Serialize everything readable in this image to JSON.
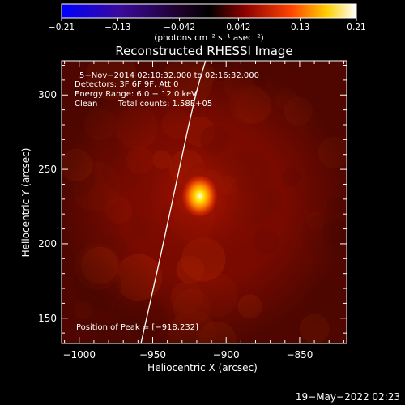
{
  "chart_data": {
    "type": "heatmap",
    "title": "Reconstructed RHESSI Image",
    "xlabel": "Heliocentric X (arcsec)",
    "ylabel": "Heliocentric Y (arcsec)",
    "xlim": [
      -1012,
      -818
    ],
    "ylim": [
      133,
      323
    ],
    "x_ticks": [
      -1000,
      -950,
      -900,
      -850
    ],
    "y_ticks": [
      150,
      200,
      250,
      300
    ],
    "x_tick_labels": [
      "−1000",
      "−950",
      "−900",
      "−850"
    ],
    "y_tick_labels": [
      "150",
      "200",
      "250",
      "300"
    ],
    "colorbar": {
      "range": [
        -0.21,
        0.21
      ],
      "ticks": [
        -0.21,
        -0.13,
        -0.042,
        0.042,
        0.13,
        0.21
      ],
      "tick_labels": [
        "−0.21",
        "−0.13",
        "−0.042",
        "0.042",
        "0.13",
        "0.21"
      ],
      "unit_label": "(photons cm⁻² s⁻¹ asec⁻²)",
      "colormap": [
        "#0000ff",
        "#4b0082",
        "#000000",
        "#8b0000",
        "#ff4500",
        "#ffd700",
        "#ffffff"
      ]
    },
    "peak": {
      "x": -918,
      "y": 232,
      "value": 0.21
    },
    "limb_curve": [
      [
        -958,
        133
      ],
      [
        -945,
        190
      ],
      [
        -932,
        250
      ],
      [
        -921,
        300
      ],
      [
        -914,
        323
      ]
    ],
    "annotations": {
      "time": "5−Nov−2014 02:10:32.000 to 02:16:32.000",
      "detectors": "Detectors: 3F 6F 9F, Att 0",
      "energy": "Energy Range: 6.0 − 12.0 keV",
      "method": "Clean",
      "counts": "Total counts: 1.58E+05",
      "peak_label": "Position of Peak = [−918,232]"
    }
  },
  "footer": {
    "timestamp": "19−May−2022 02:23"
  },
  "colors": {
    "limb": "#ffffff",
    "background": "#000000",
    "map_base": "#7a0a00"
  }
}
